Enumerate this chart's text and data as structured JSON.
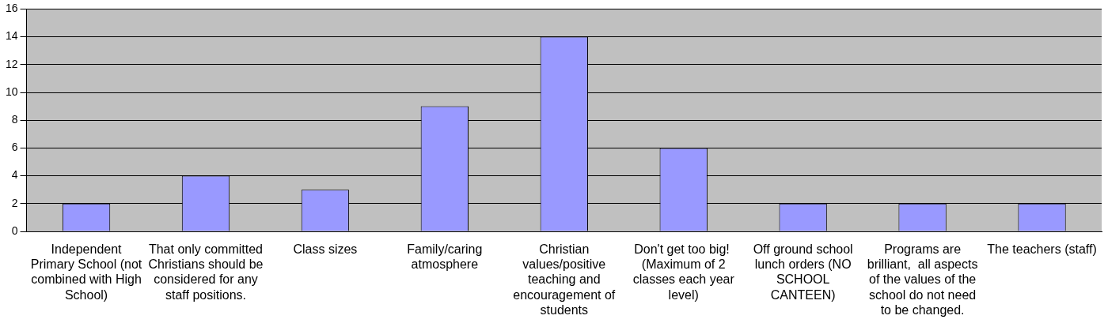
{
  "chart_data": {
    "type": "bar",
    "categories": [
      "Independent Primary School (not combined with High School)",
      "That only committed Christians should be considered for any staff positions.",
      "Class sizes",
      "Family/caring atmosphere",
      "Christian values/positive teaching and encouragement of students",
      "Don't get too big!  (Maximum of 2 classes each year level)",
      "Off ground school lunch orders (NO SCHOOL CANTEEN)",
      "Programs are brilliant,  all aspects of the values of the school do not need to be changed.",
      "The teachers (staff)"
    ],
    "values": [
      2,
      4,
      3,
      9,
      14,
      6,
      2,
      2,
      2
    ],
    "color": "#9999ff",
    "ylim": [
      0,
      16
    ],
    "yticks": [
      0,
      2,
      4,
      6,
      8,
      10,
      12,
      14,
      16
    ],
    "grid": "y"
  }
}
